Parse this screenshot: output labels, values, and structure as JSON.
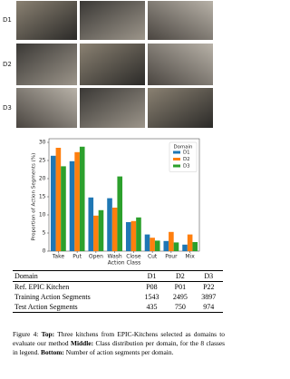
{
  "figure": {
    "rows": [
      {
        "label": "D1"
      },
      {
        "label": "D2"
      },
      {
        "label": "D3"
      }
    ]
  },
  "chart_data": {
    "type": "bar",
    "categories": [
      "Take",
      "Put",
      "Open",
      "Wash",
      "Close",
      "Cut",
      "Pour",
      "Mix"
    ],
    "series": [
      {
        "name": "D1",
        "color": "#1f77b4",
        "values": [
          26.3,
          24.8,
          14.8,
          14.6,
          8.0,
          4.6,
          2.8,
          1.8
        ]
      },
      {
        "name": "D2",
        "color": "#ff7f0e",
        "values": [
          28.5,
          27.3,
          9.8,
          12.0,
          8.3,
          3.7,
          5.3,
          4.6
        ]
      },
      {
        "name": "D3",
        "color": "#2ca02c",
        "values": [
          23.4,
          28.8,
          11.3,
          20.6,
          9.3,
          2.9,
          2.4,
          2.5
        ]
      }
    ],
    "ylim": [
      0,
      30
    ],
    "yticks": [
      0,
      5,
      10,
      15,
      20,
      25,
      30
    ],
    "x_label": "Action Class",
    "y_label": "Proportion of Action Segments (%)",
    "legend_title": "Domain",
    "legend": "upper right"
  },
  "table": {
    "header": [
      "Domain",
      "D1",
      "D2",
      "D3"
    ],
    "rows": [
      [
        "Ref. EPIC Kitchen",
        "P08",
        "P01",
        "P22"
      ],
      [
        "Training Action Segments",
        1543,
        2495,
        3897
      ],
      [
        "Test Action Segments",
        435,
        750,
        974
      ]
    ]
  },
  "caption": {
    "label": "Figure 4:",
    "parts": [
      {
        "heading": "Top:",
        "text": "Three kitchens from EPIC-Kitchens selected as domains to evaluate our method"
      },
      {
        "heading": "Middle:",
        "text": "Class distribution per domain, for the 8 classes in legend."
      },
      {
        "heading": "Bottom:",
        "text": "Number of action segments per domain."
      }
    ]
  }
}
